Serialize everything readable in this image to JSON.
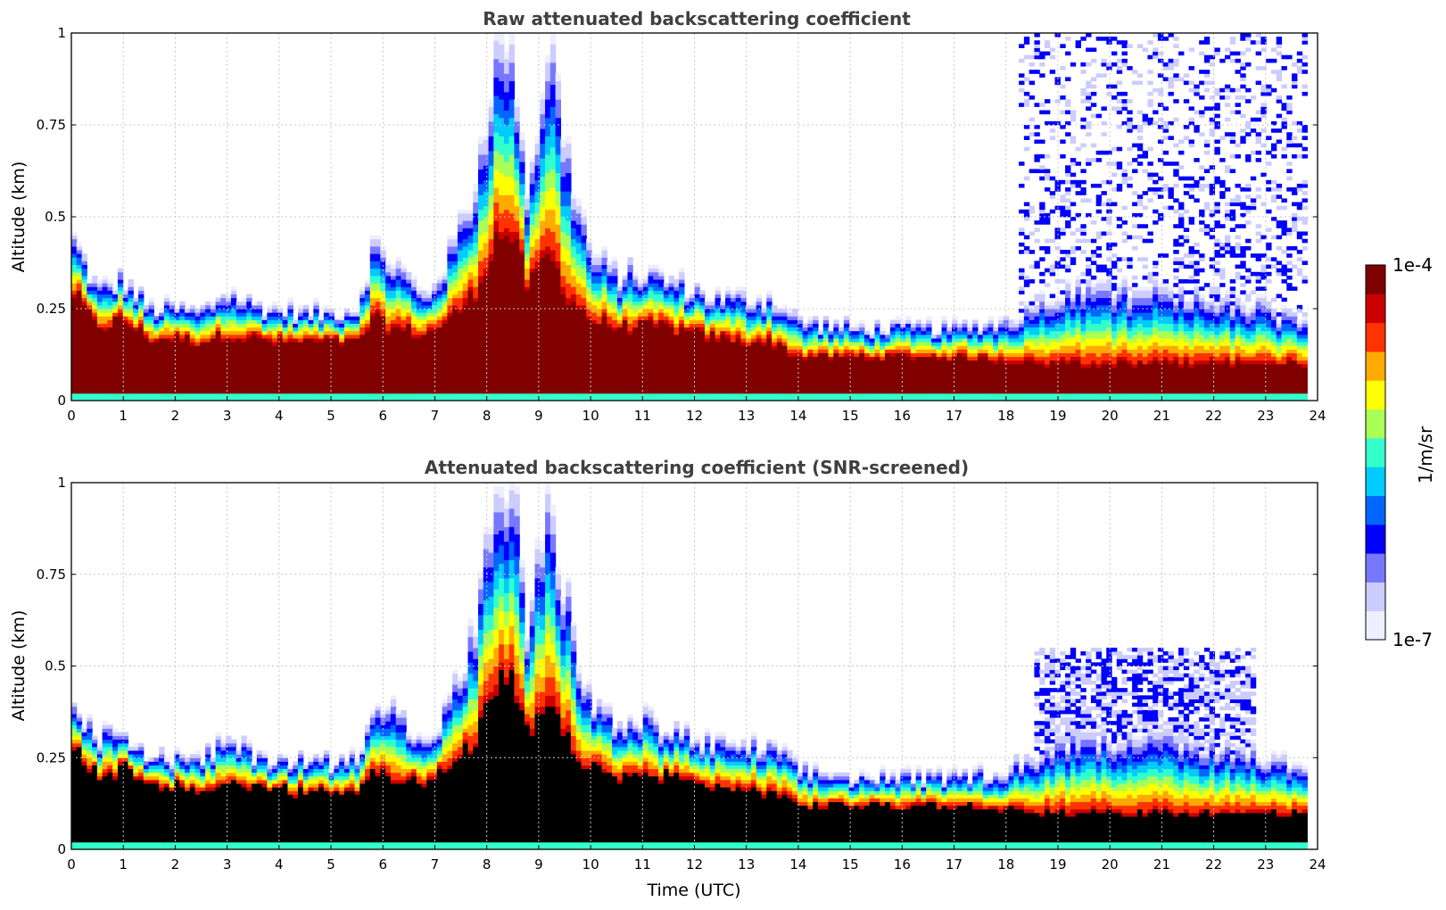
{
  "chart_data": [
    {
      "type": "heatmap",
      "title": "Raw attenuated backscattering coefficient",
      "xlabel": "",
      "ylabel": "Altitude (km)",
      "xlim": [
        0,
        24
      ],
      "ylim": [
        0,
        1
      ],
      "xticks": [
        "0",
        "1",
        "2",
        "3",
        "4",
        "5",
        "6",
        "7",
        "8",
        "9",
        "10",
        "11",
        "12",
        "13",
        "14",
        "15",
        "16",
        "17",
        "18",
        "19",
        "20",
        "21",
        "22",
        "23",
        "24"
      ],
      "yticks": [
        "0",
        "0.25",
        "0.5",
        "0.75",
        "1"
      ],
      "grid": true,
      "screened": false,
      "data_end_hour": 23.8,
      "layer_profile": {
        "hours": [
          0,
          0.5,
          1,
          1.5,
          2,
          2.5,
          3,
          3.5,
          4,
          4.5,
          5,
          5.5,
          5.8,
          6.2,
          6.8,
          7.3,
          7.8,
          8.2,
          8.5,
          8.8,
          9.2,
          9.5,
          10,
          10.5,
          11,
          11.5,
          12,
          12.5,
          13,
          13.5,
          14,
          15,
          16,
          17,
          18,
          19,
          20,
          21,
          22,
          23,
          23.8
        ],
        "top_km": [
          0.45,
          0.3,
          0.33,
          0.25,
          0.25,
          0.24,
          0.3,
          0.26,
          0.25,
          0.24,
          0.24,
          0.25,
          0.42,
          0.38,
          0.28,
          0.4,
          0.6,
          1.0,
          1.0,
          0.55,
          1.0,
          0.7,
          0.4,
          0.34,
          0.35,
          0.33,
          0.3,
          0.28,
          0.28,
          0.28,
          0.22,
          0.2,
          0.2,
          0.2,
          0.22,
          0.3,
          0.3,
          0.3,
          0.28,
          0.25,
          0.22
        ],
        "core_top_km": [
          0.3,
          0.2,
          0.22,
          0.17,
          0.17,
          0.16,
          0.18,
          0.17,
          0.16,
          0.16,
          0.16,
          0.16,
          0.22,
          0.2,
          0.18,
          0.22,
          0.3,
          0.45,
          0.45,
          0.3,
          0.4,
          0.3,
          0.22,
          0.2,
          0.2,
          0.2,
          0.18,
          0.17,
          0.16,
          0.16,
          0.12,
          0.12,
          0.12,
          0.12,
          0.11,
          0.1,
          0.1,
          0.1,
          0.1,
          0.1,
          0.1
        ]
      }
    },
    {
      "type": "heatmap",
      "title": "Attenuated backscattering coefficient (SNR-screened)",
      "xlabel": "Time (UTC)",
      "ylabel": "Altitude (km)",
      "xlim": [
        0,
        24
      ],
      "ylim": [
        0,
        1
      ],
      "xticks": [
        "0",
        "1",
        "2",
        "3",
        "4",
        "5",
        "6",
        "7",
        "8",
        "9",
        "10",
        "11",
        "12",
        "13",
        "14",
        "15",
        "16",
        "17",
        "18",
        "19",
        "20",
        "21",
        "22",
        "23",
        "24"
      ],
      "yticks": [
        "0",
        "0.25",
        "0.5",
        "0.75",
        "1"
      ],
      "grid": true,
      "screened": true,
      "data_end_hour": 23.8
    }
  ],
  "colorbar": {
    "label": "1/m/sr",
    "max_label": "1e-4",
    "min_label": "1e-7",
    "colormap": [
      "#eeeeff",
      "#ccccff",
      "#7777ff",
      "#0000ff",
      "#0066ff",
      "#00ccff",
      "#33ffcc",
      "#aaff55",
      "#ffff00",
      "#ffaa00",
      "#ff3300",
      "#cc0000",
      "#800000"
    ]
  }
}
